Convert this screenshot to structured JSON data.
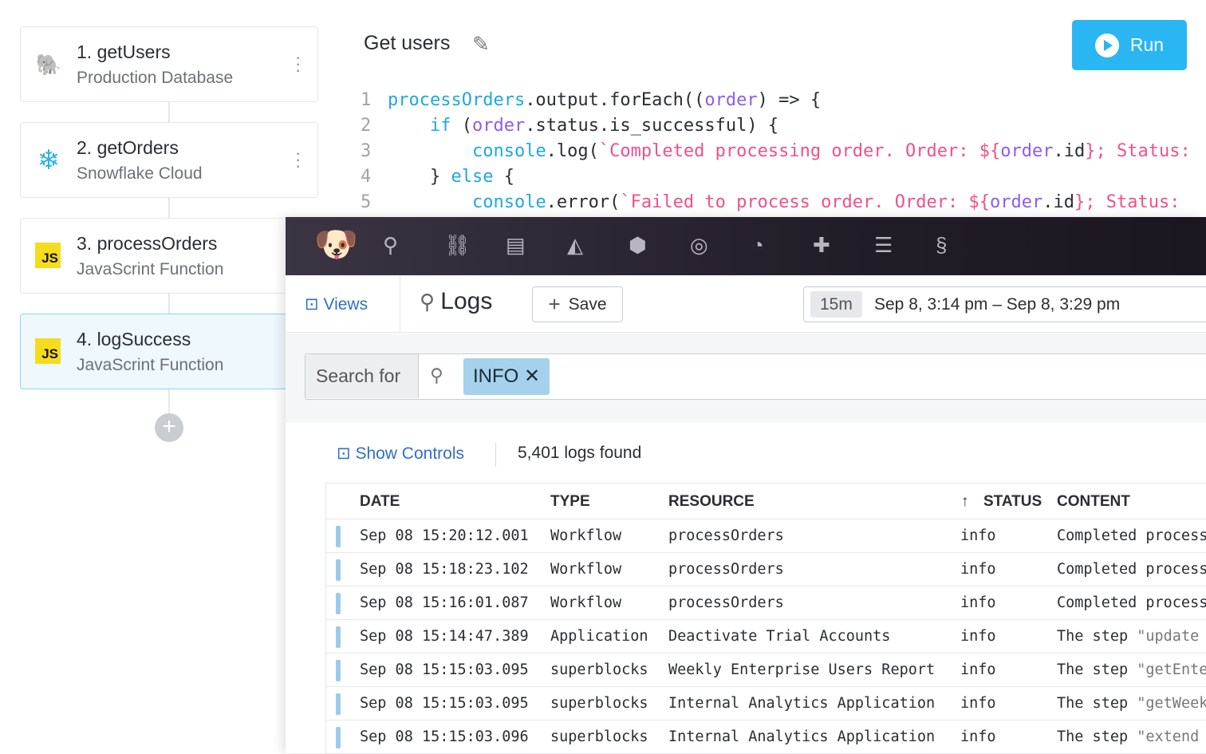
{
  "steps": [
    {
      "title": "1. getUsers",
      "subtitle": "Production Database",
      "icon": "postgres-icon"
    },
    {
      "title": "2. getOrders",
      "subtitle": "Snowflake Cloud",
      "icon": "snowflake-icon"
    },
    {
      "title": "3. processOrders",
      "subtitle": "JavaScrint Function",
      "icon": "js-icon"
    },
    {
      "title": "4. logSuccess",
      "subtitle": "JavaScrint Function",
      "icon": "js-icon"
    }
  ],
  "js_badge": "JS",
  "editor": {
    "title": "Get users",
    "run_label": "Run"
  },
  "code": [
    [
      [
        "processOrders",
        "#1ea7e4"
      ],
      [
        ".output.forEach((",
        "#2a2d34"
      ],
      [
        "order",
        "#8b5cf6"
      ],
      [
        ") => {",
        "#2a2d34"
      ]
    ],
    [
      [
        "    ",
        ""
      ],
      [
        "if",
        "#1ea7e4"
      ],
      [
        " (",
        "#2a2d34"
      ],
      [
        "order",
        "#8b5cf6"
      ],
      [
        ".status.is_successful) {",
        "#2a2d34"
      ]
    ],
    [
      [
        "        ",
        ""
      ],
      [
        "console",
        "#1ea7e4"
      ],
      [
        ".log(",
        "#2a2d34"
      ],
      [
        "`Completed processing order. Order: ${",
        "#f0508a"
      ],
      [
        "order",
        "#8b5cf6"
      ],
      [
        ".id",
        "#2a2d34"
      ],
      [
        "}; Status:",
        "#f0508a"
      ]
    ],
    [
      [
        "    ",
        ""
      ],
      [
        "} ",
        "#2a2d34"
      ],
      [
        "else",
        "#1ea7e4"
      ],
      [
        " {",
        "#2a2d34"
      ]
    ],
    [
      [
        "        ",
        ""
      ],
      [
        "console",
        "#1ea7e4"
      ],
      [
        ".error(",
        "#2a2d34"
      ],
      [
        "`Failed to process order. Order: ${",
        "#f0508a"
      ],
      [
        "order",
        "#8b5cf6"
      ],
      [
        ".id",
        "#2a2d34"
      ],
      [
        "}; Status:",
        "#f0508a"
      ]
    ]
  ],
  "logs": {
    "nav_icons": [
      "search-icon",
      "binoculars-icon",
      "list-icon",
      "area-chart-icon",
      "hexagons-icon",
      "target-icon",
      "gauge-icon",
      "puzzle-icon",
      "filter-icon",
      "link-icon"
    ],
    "views_label": "Views",
    "title": "Logs",
    "save_label": "Save",
    "time_badge": "15m",
    "time_range": "Sep 8, 3:14 pm – Sep 8, 3:29 pm",
    "search_label": "Search for",
    "chip": "INFO",
    "show_controls": "Show Controls",
    "found": "5,401 logs found",
    "columns": [
      "DATE",
      "TYPE",
      "RESOURCE",
      "STATUS",
      "CONTENT"
    ],
    "rows": [
      {
        "date": "Sep 08 15:20:12.001",
        "type": "Workflow",
        "resource": "processOrders",
        "status": "info",
        "content": "Completed process",
        "quoted": ""
      },
      {
        "date": "Sep 08 15:18:23.102",
        "type": "Workflow",
        "resource": "processOrders",
        "status": "info",
        "content": "Completed process",
        "quoted": ""
      },
      {
        "date": "Sep 08 15:16:01.087",
        "type": "Workflow",
        "resource": "processOrders",
        "status": "info",
        "content": "Completed process",
        "quoted": ""
      },
      {
        "date": "Sep 08 15:14:47.389",
        "type": "Application",
        "resource": "Deactivate Trial Accounts",
        "status": "info",
        "content": "The step ",
        "quoted": "\"update"
      },
      {
        "date": "Sep 08 15:15:03.095",
        "type": "superblocks",
        "resource": "Weekly Enterprise Users Report",
        "status": "info",
        "content": "The step ",
        "quoted": "\"getEnte"
      },
      {
        "date": "Sep 08 15:15:03.095",
        "type": "superblocks",
        "resource": "Internal Analytics Application",
        "status": "info",
        "content": "The step ",
        "quoted": "\"getWeek"
      },
      {
        "date": "Sep 08 15:15:03.096",
        "type": "superblocks",
        "resource": "Internal Analytics Application",
        "status": "info",
        "content": "The step ",
        "quoted": "\"extend"
      }
    ]
  }
}
